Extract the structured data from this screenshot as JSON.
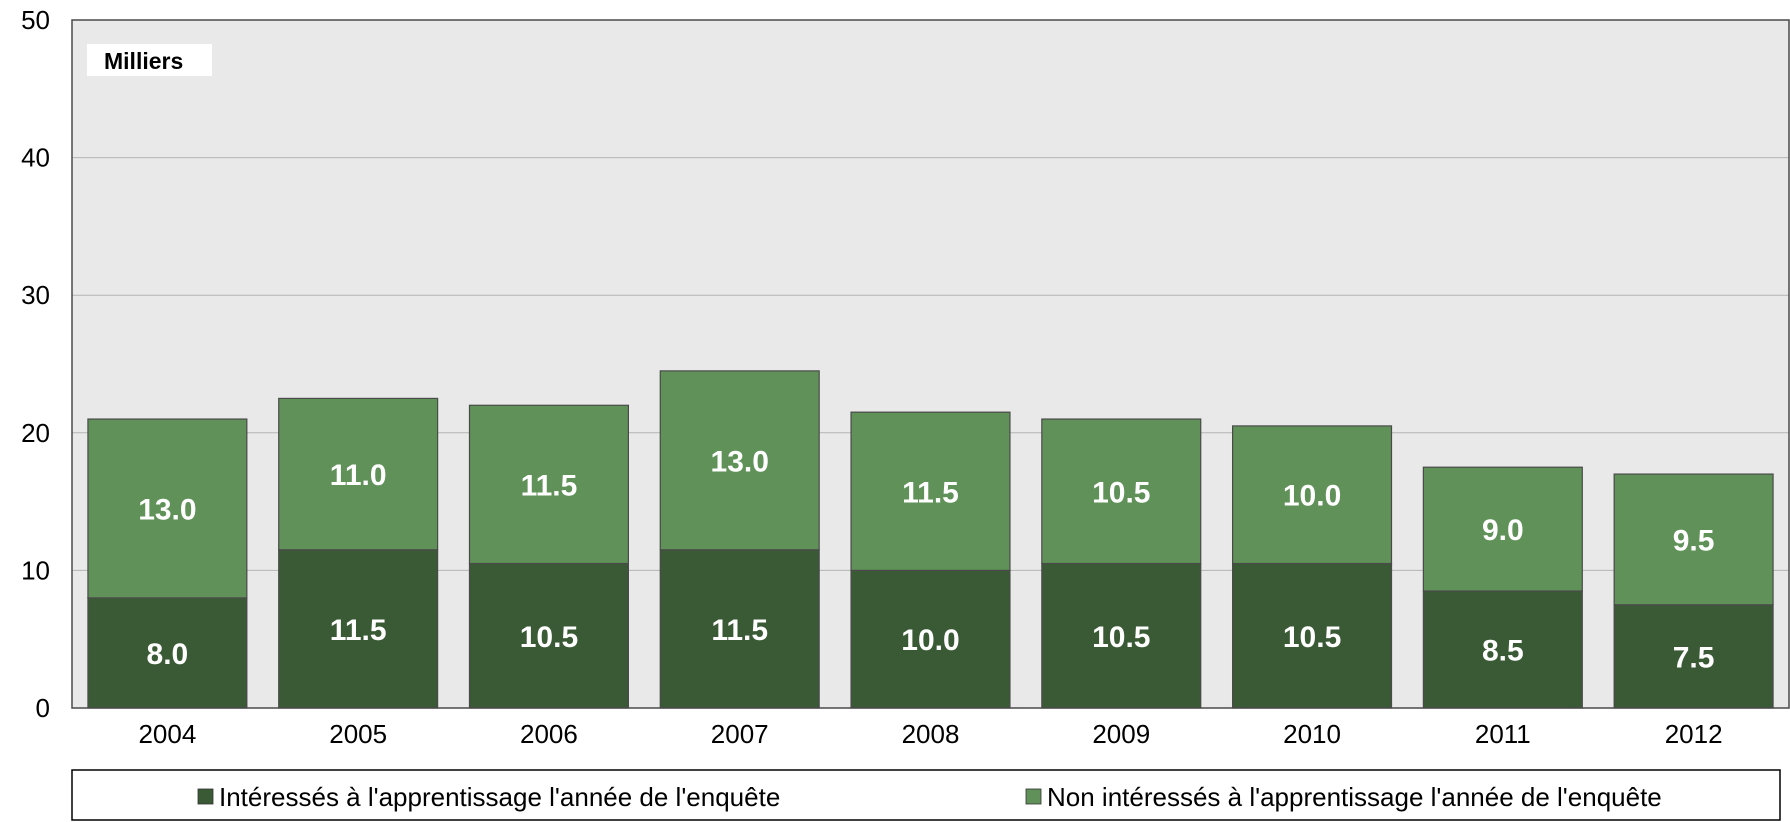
{
  "chart_data": {
    "type": "bar",
    "stacked": true,
    "unit_label": "Milliers",
    "categories": [
      "2004",
      "2005",
      "2006",
      "2007",
      "2008",
      "2009",
      "2010",
      "2011",
      "2012"
    ],
    "series": [
      {
        "name": "Intéressés à l'apprentissage l'année de l'enquête",
        "color": "#3a5a35",
        "values": [
          8.0,
          11.5,
          10.5,
          11.5,
          10.0,
          10.5,
          10.5,
          8.5,
          7.5
        ]
      },
      {
        "name": "Non intéressés à l'apprentissage l'année de l'enquête",
        "color": "#5f9158",
        "values": [
          13.0,
          11.0,
          11.5,
          13.0,
          11.5,
          10.5,
          10.0,
          9.0,
          9.5
        ]
      }
    ],
    "data_labels": [
      [
        "8.0",
        "11.5",
        "10.5",
        "11.5",
        "10.0",
        "10.5",
        "10.5",
        "8.5",
        "7.5"
      ],
      [
        "13.0",
        "11.0",
        "11.5",
        "13.0",
        "11.5",
        "10.5",
        "10.0",
        "9.0",
        "9.5"
      ]
    ],
    "ylim": [
      0,
      50
    ],
    "yticks": [
      "0",
      "10",
      "20",
      "30",
      "40",
      "50"
    ],
    "grid": true,
    "plot_background": "#e9e9e9",
    "legend_position": "bottom"
  }
}
